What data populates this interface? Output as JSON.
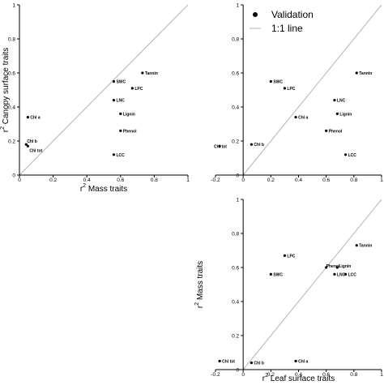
{
  "legend": {
    "position": "top-right",
    "items": [
      {
        "label": "Validation",
        "marker": "dot"
      },
      {
        "label": "1:1 line",
        "marker": "line"
      }
    ]
  },
  "colors": {
    "points": "#000000",
    "axes": "#000000",
    "reference_line": "#b5b5b5"
  },
  "chart_data": [
    {
      "type": "scatter",
      "title": "",
      "xlabel": "r² Mass traits",
      "ylabel": "r² Canopy surface traits",
      "xlim": [
        0,
        1
      ],
      "ylim": [
        0,
        1
      ],
      "xticks": [
        "0",
        "0.2",
        "0.4",
        "0.6",
        "0.8",
        "1"
      ],
      "yticks": [
        "0",
        "0.2",
        "0.4",
        "0.6",
        "0.8",
        "1"
      ],
      "grid": false,
      "reference_line": "1:1",
      "points": [
        {
          "label": "Tannin",
          "x": 0.73,
          "y": 0.6
        },
        {
          "label": "SWC",
          "x": 0.56,
          "y": 0.55
        },
        {
          "label": "LPC",
          "x": 0.67,
          "y": 0.51
        },
        {
          "label": "LNC",
          "x": 0.56,
          "y": 0.44
        },
        {
          "label": "Lignin",
          "x": 0.6,
          "y": 0.36
        },
        {
          "label": "Chl a",
          "x": 0.05,
          "y": 0.34
        },
        {
          "label": "Phenol",
          "x": 0.6,
          "y": 0.26
        },
        {
          "label": "Chl b",
          "x": 0.04,
          "y": 0.18
        },
        {
          "label": "Chl tot",
          "x": 0.05,
          "y": 0.17
        },
        {
          "label": "LCC",
          "x": 0.56,
          "y": 0.12
        }
      ]
    },
    {
      "type": "scatter",
      "title": "",
      "xlabel": "",
      "ylabel": "",
      "xlim": [
        -0.2,
        1
      ],
      "ylim": [
        0,
        1
      ],
      "xticks": [
        "-0.2",
        "0",
        "0.2",
        "0.4",
        "0.6",
        "0.8",
        "1"
      ],
      "yticks": [
        "0",
        "0.2",
        "0.4",
        "0.6",
        "0.8",
        "1"
      ],
      "grid": false,
      "reference_line": "1:1",
      "points": [
        {
          "label": "Tannin",
          "x": 0.82,
          "y": 0.6
        },
        {
          "label": "SWC",
          "x": 0.2,
          "y": 0.55
        },
        {
          "label": "LPC",
          "x": 0.3,
          "y": 0.51
        },
        {
          "label": "LNC",
          "x": 0.66,
          "y": 0.44
        },
        {
          "label": "Lignin",
          "x": 0.68,
          "y": 0.36
        },
        {
          "label": "Chl a",
          "x": 0.38,
          "y": 0.34
        },
        {
          "label": "Phenol",
          "x": 0.6,
          "y": 0.26
        },
        {
          "label": "Chl tot",
          "x": -0.17,
          "y": 0.17
        },
        {
          "label": "Chl b",
          "x": 0.06,
          "y": 0.18
        },
        {
          "label": "LCC",
          "x": 0.74,
          "y": 0.12
        }
      ]
    },
    {
      "type": "scatter",
      "title": "",
      "xlabel": "r² Leaf surface traits",
      "ylabel": "r² Mass traits",
      "xlim": [
        -0.2,
        1
      ],
      "ylim": [
        0,
        1
      ],
      "xticks": [
        "-0.2",
        "0",
        "0.2",
        "0.4",
        "0.6",
        "0.8",
        "1"
      ],
      "yticks": [
        "0",
        "0.2",
        "0.4",
        "0.6",
        "0.8",
        "1"
      ],
      "grid": false,
      "reference_line": "1:1",
      "points": [
        {
          "label": "Tannin",
          "x": 0.82,
          "y": 0.73
        },
        {
          "label": "LPC",
          "x": 0.3,
          "y": 0.67
        },
        {
          "label": "Phenol",
          "x": 0.6,
          "y": 0.6
        },
        {
          "label": "Lignin",
          "x": 0.68,
          "y": 0.6
        },
        {
          "label": "SWC",
          "x": 0.2,
          "y": 0.56
        },
        {
          "label": "LNC",
          "x": 0.66,
          "y": 0.56
        },
        {
          "label": "LCC",
          "x": 0.74,
          "y": 0.56
        },
        {
          "label": "Chl tot",
          "x": -0.17,
          "y": 0.05
        },
        {
          "label": "Chl b",
          "x": 0.06,
          "y": 0.04
        },
        {
          "label": "Chl a",
          "x": 0.38,
          "y": 0.05
        }
      ]
    }
  ]
}
